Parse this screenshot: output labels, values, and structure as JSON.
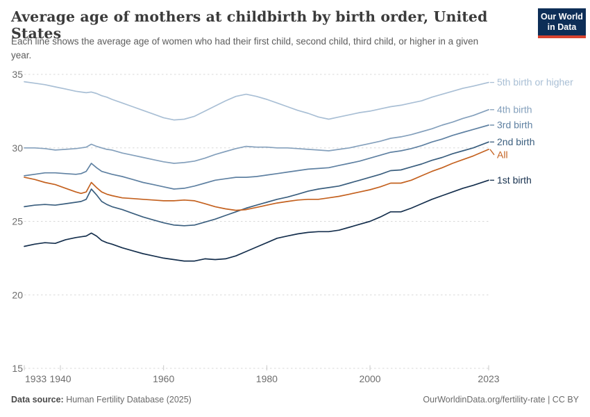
{
  "header": {
    "title": "Average age of mothers at childbirth by birth order, United States",
    "subtitle": "Each line shows the average age of women who had their first child, second child, third child, or higher in a given year."
  },
  "logo": {
    "line1": "Our World",
    "line2": "in Data",
    "bg_color": "#0d2e57",
    "accent_color": "#d8432f"
  },
  "chart_data": {
    "type": "line",
    "title": "Average age of mothers at childbirth by birth order, United States",
    "subtitle": "Each line shows the average age of women who had their first child, second child, third child, or higher in a given year.",
    "xlabel": "",
    "ylabel": "",
    "xlim": [
      1933,
      2023
    ],
    "ylim": [
      15,
      35
    ],
    "x_ticks": [
      1933,
      1940,
      1960,
      1980,
      2000,
      2023
    ],
    "y_ticks": [
      15,
      20,
      25,
      30,
      35
    ],
    "grid": "horizontal-dashed",
    "legend_position": "right-of-line-ends",
    "x": [
      1933,
      1935,
      1937,
      1939,
      1941,
      1943,
      1944,
      1945,
      1946,
      1947,
      1948,
      1949,
      1950,
      1952,
      1954,
      1956,
      1958,
      1960,
      1962,
      1964,
      1966,
      1968,
      1970,
      1972,
      1974,
      1976,
      1978,
      1980,
      1982,
      1984,
      1986,
      1988,
      1990,
      1992,
      1994,
      1996,
      1998,
      2000,
      2002,
      2004,
      2006,
      2008,
      2010,
      2012,
      2014,
      2016,
      2018,
      2020,
      2023
    ],
    "series": [
      {
        "name": "5th birth or higher",
        "color": "#a9bfd5",
        "values": [
          34.5,
          34.4,
          34.3,
          34.15,
          34.0,
          33.85,
          33.8,
          33.75,
          33.8,
          33.7,
          33.55,
          33.45,
          33.3,
          33.05,
          32.8,
          32.55,
          32.3,
          32.05,
          31.9,
          31.95,
          32.15,
          32.5,
          32.85,
          33.2,
          33.5,
          33.65,
          33.5,
          33.3,
          33.05,
          32.8,
          32.55,
          32.35,
          32.1,
          31.95,
          32.1,
          32.25,
          32.4,
          32.5,
          32.65,
          32.8,
          32.9,
          33.05,
          33.2,
          33.45,
          33.65,
          33.85,
          34.05,
          34.2,
          34.45
        ]
      },
      {
        "name": "4th birth",
        "color": "#84a0bc",
        "values": [
          30.0,
          30.0,
          29.95,
          29.85,
          29.9,
          29.95,
          30.0,
          30.05,
          30.25,
          30.1,
          30.0,
          29.9,
          29.85,
          29.65,
          29.5,
          29.35,
          29.2,
          29.05,
          28.95,
          29.0,
          29.1,
          29.3,
          29.55,
          29.75,
          29.95,
          30.1,
          30.05,
          30.05,
          30.0,
          30.0,
          29.95,
          29.9,
          29.85,
          29.8,
          29.9,
          30.0,
          30.15,
          30.3,
          30.45,
          30.65,
          30.75,
          30.9,
          31.1,
          31.3,
          31.55,
          31.75,
          32.0,
          32.2,
          32.6
        ]
      },
      {
        "name": "3rd birth",
        "color": "#5f81a2",
        "values": [
          28.1,
          28.2,
          28.3,
          28.3,
          28.25,
          28.2,
          28.25,
          28.4,
          28.95,
          28.65,
          28.4,
          28.3,
          28.2,
          28.05,
          27.85,
          27.65,
          27.5,
          27.35,
          27.2,
          27.25,
          27.4,
          27.6,
          27.8,
          27.9,
          28.0,
          28.0,
          28.05,
          28.15,
          28.25,
          28.35,
          28.45,
          28.55,
          28.6,
          28.65,
          28.8,
          28.95,
          29.1,
          29.3,
          29.5,
          29.7,
          29.8,
          29.95,
          30.15,
          30.4,
          30.6,
          30.85,
          31.05,
          31.25,
          31.55
        ]
      },
      {
        "name": "2nd birth",
        "color": "#3a5e7e",
        "values": [
          26.0,
          26.1,
          26.15,
          26.1,
          26.2,
          26.3,
          26.35,
          26.5,
          27.2,
          26.8,
          26.35,
          26.15,
          26.0,
          25.8,
          25.55,
          25.3,
          25.1,
          24.9,
          24.75,
          24.7,
          24.75,
          24.95,
          25.15,
          25.4,
          25.65,
          25.9,
          26.1,
          26.3,
          26.5,
          26.65,
          26.85,
          27.05,
          27.2,
          27.3,
          27.4,
          27.6,
          27.8,
          28.0,
          28.2,
          28.45,
          28.5,
          28.7,
          28.9,
          29.15,
          29.35,
          29.6,
          29.8,
          30.0,
          30.4
        ]
      },
      {
        "name": "All",
        "color": "#c4611f",
        "values": [
          28.0,
          27.85,
          27.65,
          27.5,
          27.25,
          27.0,
          26.9,
          27.0,
          27.65,
          27.3,
          27.0,
          26.85,
          26.75,
          26.6,
          26.55,
          26.5,
          26.45,
          26.4,
          26.4,
          26.45,
          26.4,
          26.2,
          26.0,
          25.85,
          25.75,
          25.8,
          25.95,
          26.1,
          26.25,
          26.35,
          26.45,
          26.5,
          26.5,
          26.6,
          26.7,
          26.85,
          27.0,
          27.15,
          27.35,
          27.6,
          27.6,
          27.8,
          28.1,
          28.4,
          28.65,
          28.95,
          29.2,
          29.45,
          29.9
        ]
      },
      {
        "name": "1st birth",
        "color": "#152f4d",
        "values": [
          23.3,
          23.45,
          23.55,
          23.5,
          23.75,
          23.9,
          23.95,
          24.0,
          24.2,
          24.0,
          23.7,
          23.55,
          23.45,
          23.2,
          23.0,
          22.8,
          22.65,
          22.5,
          22.4,
          22.3,
          22.3,
          22.45,
          22.4,
          22.45,
          22.65,
          22.95,
          23.25,
          23.55,
          23.85,
          24.0,
          24.15,
          24.25,
          24.3,
          24.3,
          24.4,
          24.6,
          24.8,
          25.0,
          25.3,
          25.65,
          25.65,
          25.9,
          26.2,
          26.5,
          26.75,
          27.0,
          27.25,
          27.45,
          27.8
        ]
      }
    ]
  },
  "footer": {
    "source_label": "Data source:",
    "source_value": " Human Fertility Database (2025)",
    "credit": "OurWorldinData.org/fertility-rate | CC BY"
  }
}
